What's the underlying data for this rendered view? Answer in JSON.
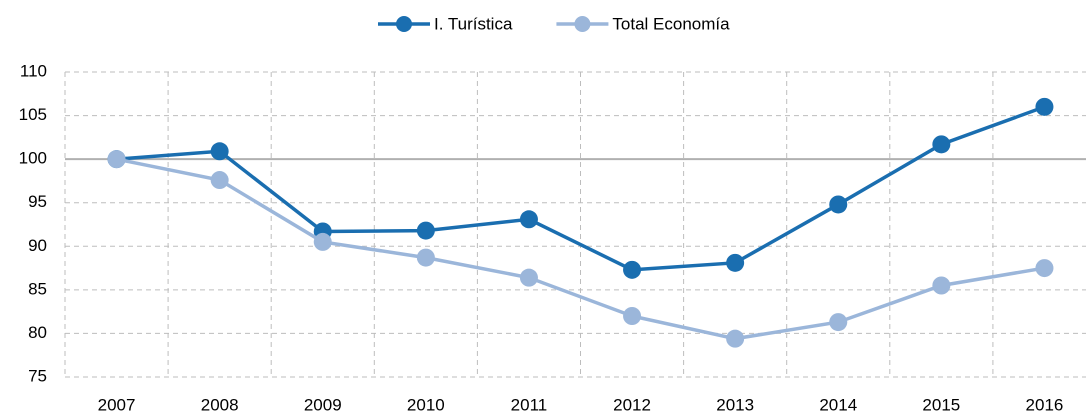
{
  "chart_data": {
    "type": "line",
    "categories": [
      "2007",
      "2008",
      "2009",
      "2010",
      "2011",
      "2012",
      "2013",
      "2014",
      "2015",
      "2016"
    ],
    "series": [
      {
        "name": "I. Turística",
        "color": "#1a6eb0",
        "values": [
          100,
          100.9,
          91.7,
          91.8,
          93.1,
          87.3,
          88.1,
          94.8,
          101.7,
          106.0
        ]
      },
      {
        "name": "Total Economía",
        "color": "#9bb6da",
        "values": [
          100,
          97.6,
          90.5,
          88.7,
          86.4,
          82.0,
          79.4,
          81.3,
          85.5,
          87.5
        ]
      }
    ],
    "ylim": [
      75,
      110
    ],
    "yticks": [
      75,
      80,
      85,
      90,
      95,
      100,
      105,
      110
    ],
    "grid": true,
    "reference_line": 100,
    "legend": "top"
  }
}
